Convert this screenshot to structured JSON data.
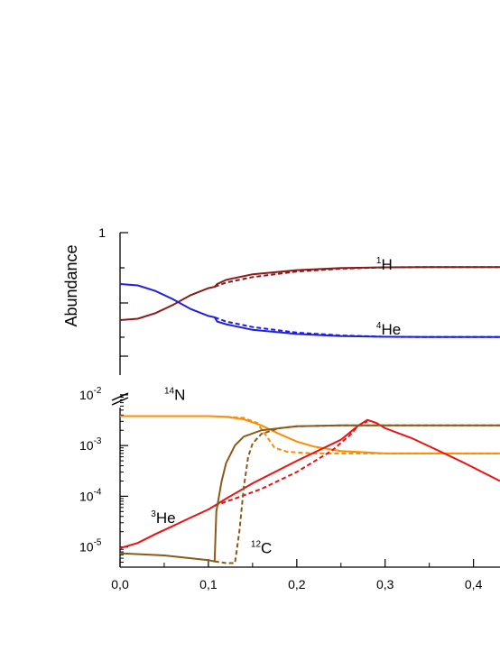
{
  "chart_data": {
    "type": "line",
    "x_tick_labels": [
      "0,0",
      "0,1",
      "0,2",
      "0,3",
      "0,4"
    ],
    "xlim": [
      0,
      0.43
    ],
    "panels": [
      {
        "name": "upper",
        "ylabel": "Abundance",
        "y_tick_labels": [
          "1"
        ],
        "ylim": [
          0,
          1
        ],
        "y_scale": "linear",
        "series": [
          {
            "label": "1H",
            "label_main": "H",
            "label_sup": "1",
            "label_x": 0.29,
            "label_y": 0.735,
            "color": "#8b1a1a",
            "solid": [
              [
                0,
                0.37
              ],
              [
                0.02,
                0.38
              ],
              [
                0.04,
                0.42
              ],
              [
                0.06,
                0.48
              ],
              [
                0.08,
                0.55
              ],
              [
                0.1,
                0.6
              ],
              [
                0.107,
                0.61
              ],
              [
                0.11,
                0.63
              ],
              [
                0.12,
                0.66
              ],
              [
                0.15,
                0.7
              ],
              [
                0.2,
                0.73
              ],
              [
                0.25,
                0.745
              ],
              [
                0.3,
                0.75
              ],
              [
                0.35,
                0.752
              ],
              [
                0.43,
                0.752
              ]
            ],
            "dashed": [
              [
                0.107,
                0.61
              ],
              [
                0.12,
                0.64
              ],
              [
                0.15,
                0.68
              ],
              [
                0.2,
                0.72
              ],
              [
                0.25,
                0.74
              ],
              [
                0.3,
                0.75
              ],
              [
                0.35,
                0.752
              ],
              [
                0.43,
                0.752
              ]
            ]
          },
          {
            "label": "4He",
            "label_main": "He",
            "label_sup": "4",
            "label_x": 0.29,
            "label_y": 0.265,
            "color": "#1f1fe0",
            "solid": [
              [
                0,
                0.63
              ],
              [
                0.02,
                0.62
              ],
              [
                0.04,
                0.58
              ],
              [
                0.06,
                0.52
              ],
              [
                0.08,
                0.45
              ],
              [
                0.1,
                0.4
              ],
              [
                0.107,
                0.39
              ],
              [
                0.11,
                0.36
              ],
              [
                0.12,
                0.34
              ],
              [
                0.15,
                0.3
              ],
              [
                0.2,
                0.27
              ],
              [
                0.25,
                0.255
              ],
              [
                0.3,
                0.25
              ],
              [
                0.35,
                0.248
              ],
              [
                0.43,
                0.248
              ]
            ],
            "dashed": [
              [
                0.107,
                0.39
              ],
              [
                0.12,
                0.36
              ],
              [
                0.15,
                0.32
              ],
              [
                0.2,
                0.28
              ],
              [
                0.25,
                0.26
              ],
              [
                0.3,
                0.25
              ],
              [
                0.35,
                0.248
              ],
              [
                0.43,
                0.248
              ]
            ]
          }
        ]
      },
      {
        "name": "lower",
        "y_tick_labels": [
          "10^-5",
          "10^-4",
          "10^-3",
          "10^-2"
        ],
        "ylim": [
          4e-06,
          0.015
        ],
        "y_scale": "log",
        "series": [
          {
            "label": "14N",
            "label_main": "N",
            "label_sup": "14",
            "label_x": 0.05,
            "label_y": 0.008,
            "color": "#ff8c00",
            "solid": [
              [
                0,
                0.0038
              ],
              [
                0.05,
                0.0038
              ],
              [
                0.1,
                0.0038
              ],
              [
                0.12,
                0.0037
              ],
              [
                0.14,
                0.0033
              ],
              [
                0.16,
                0.0025
              ],
              [
                0.18,
                0.0017
              ],
              [
                0.2,
                0.0012
              ],
              [
                0.22,
                0.00095
              ],
              [
                0.25,
                0.00078
              ],
              [
                0.3,
                0.0007
              ],
              [
                0.35,
                0.0007
              ],
              [
                0.43,
                0.0007
              ]
            ],
            "dashed": [
              [
                0.12,
                0.0037
              ],
              [
                0.14,
                0.0035
              ],
              [
                0.155,
                0.0028
              ],
              [
                0.165,
                0.0016
              ],
              [
                0.175,
                0.0009
              ],
              [
                0.19,
                0.00075
              ],
              [
                0.22,
                0.0007
              ],
              [
                0.3,
                0.0007
              ],
              [
                0.43,
                0.0007
              ]
            ]
          },
          {
            "label": "3He",
            "label_main": "He",
            "label_sup": "3",
            "label_x": 0.035,
            "label_y": 3e-05,
            "color": "#ee1111",
            "solid": [
              [
                0,
                9.5e-06
              ],
              [
                0.02,
                1.2e-05
              ],
              [
                0.04,
                1.8e-05
              ],
              [
                0.06,
                2.6e-05
              ],
              [
                0.08,
                3.8e-05
              ],
              [
                0.1,
                5.5e-05
              ],
              [
                0.107,
                6.5e-05
              ],
              [
                0.12,
                9e-05
              ],
              [
                0.15,
                0.00018
              ],
              [
                0.2,
                0.0005
              ],
              [
                0.25,
                0.0013
              ],
              [
                0.27,
                0.0025
              ],
              [
                0.28,
                0.0032
              ],
              [
                0.29,
                0.0028
              ],
              [
                0.3,
                0.0022
              ],
              [
                0.33,
                0.0014
              ],
              [
                0.36,
                0.0008
              ],
              [
                0.39,
                0.00045
              ],
              [
                0.43,
                0.0002
              ]
            ],
            "dashed": [
              [
                0.107,
                6.5e-05
              ],
              [
                0.13,
                9e-05
              ],
              [
                0.16,
                0.00014
              ],
              [
                0.2,
                0.0003
              ],
              [
                0.24,
                0.0008
              ],
              [
                0.26,
                0.0016
              ],
              [
                0.27,
                0.0025
              ],
              [
                0.28,
                0.003
              ]
            ]
          },
          {
            "label": "12C",
            "label_main": "C",
            "label_sup": "12",
            "label_x": 0.148,
            "label_y": 7.5e-06,
            "color": "#8b5a1a",
            "solid": [
              [
                0,
                7.5e-06
              ],
              [
                0.05,
                6.8e-06
              ],
              [
                0.1,
                5.5e-06
              ],
              [
                0.107,
                5.2e-06
              ],
              [
                0.109,
                5e-05
              ],
              [
                0.115,
                0.0002
              ],
              [
                0.12,
                0.00045
              ],
              [
                0.13,
                0.001
              ],
              [
                0.14,
                0.0015
              ],
              [
                0.16,
                0.002
              ],
              [
                0.2,
                0.0024
              ],
              [
                0.25,
                0.0025
              ],
              [
                0.3,
                0.0025
              ],
              [
                0.43,
                0.0025
              ]
            ],
            "dashed": [
              [
                0.107,
                5.2e-06
              ],
              [
                0.12,
                4.8e-06
              ],
              [
                0.13,
                4.8e-06
              ],
              [
                0.135,
                2e-05
              ],
              [
                0.14,
                0.00015
              ],
              [
                0.145,
                0.0006
              ],
              [
                0.15,
                0.0011
              ],
              [
                0.16,
                0.0017
              ],
              [
                0.18,
                0.0022
              ],
              [
                0.2,
                0.0024
              ],
              [
                0.25,
                0.0025
              ],
              [
                0.43,
                0.0025
              ]
            ]
          }
        ]
      }
    ]
  }
}
